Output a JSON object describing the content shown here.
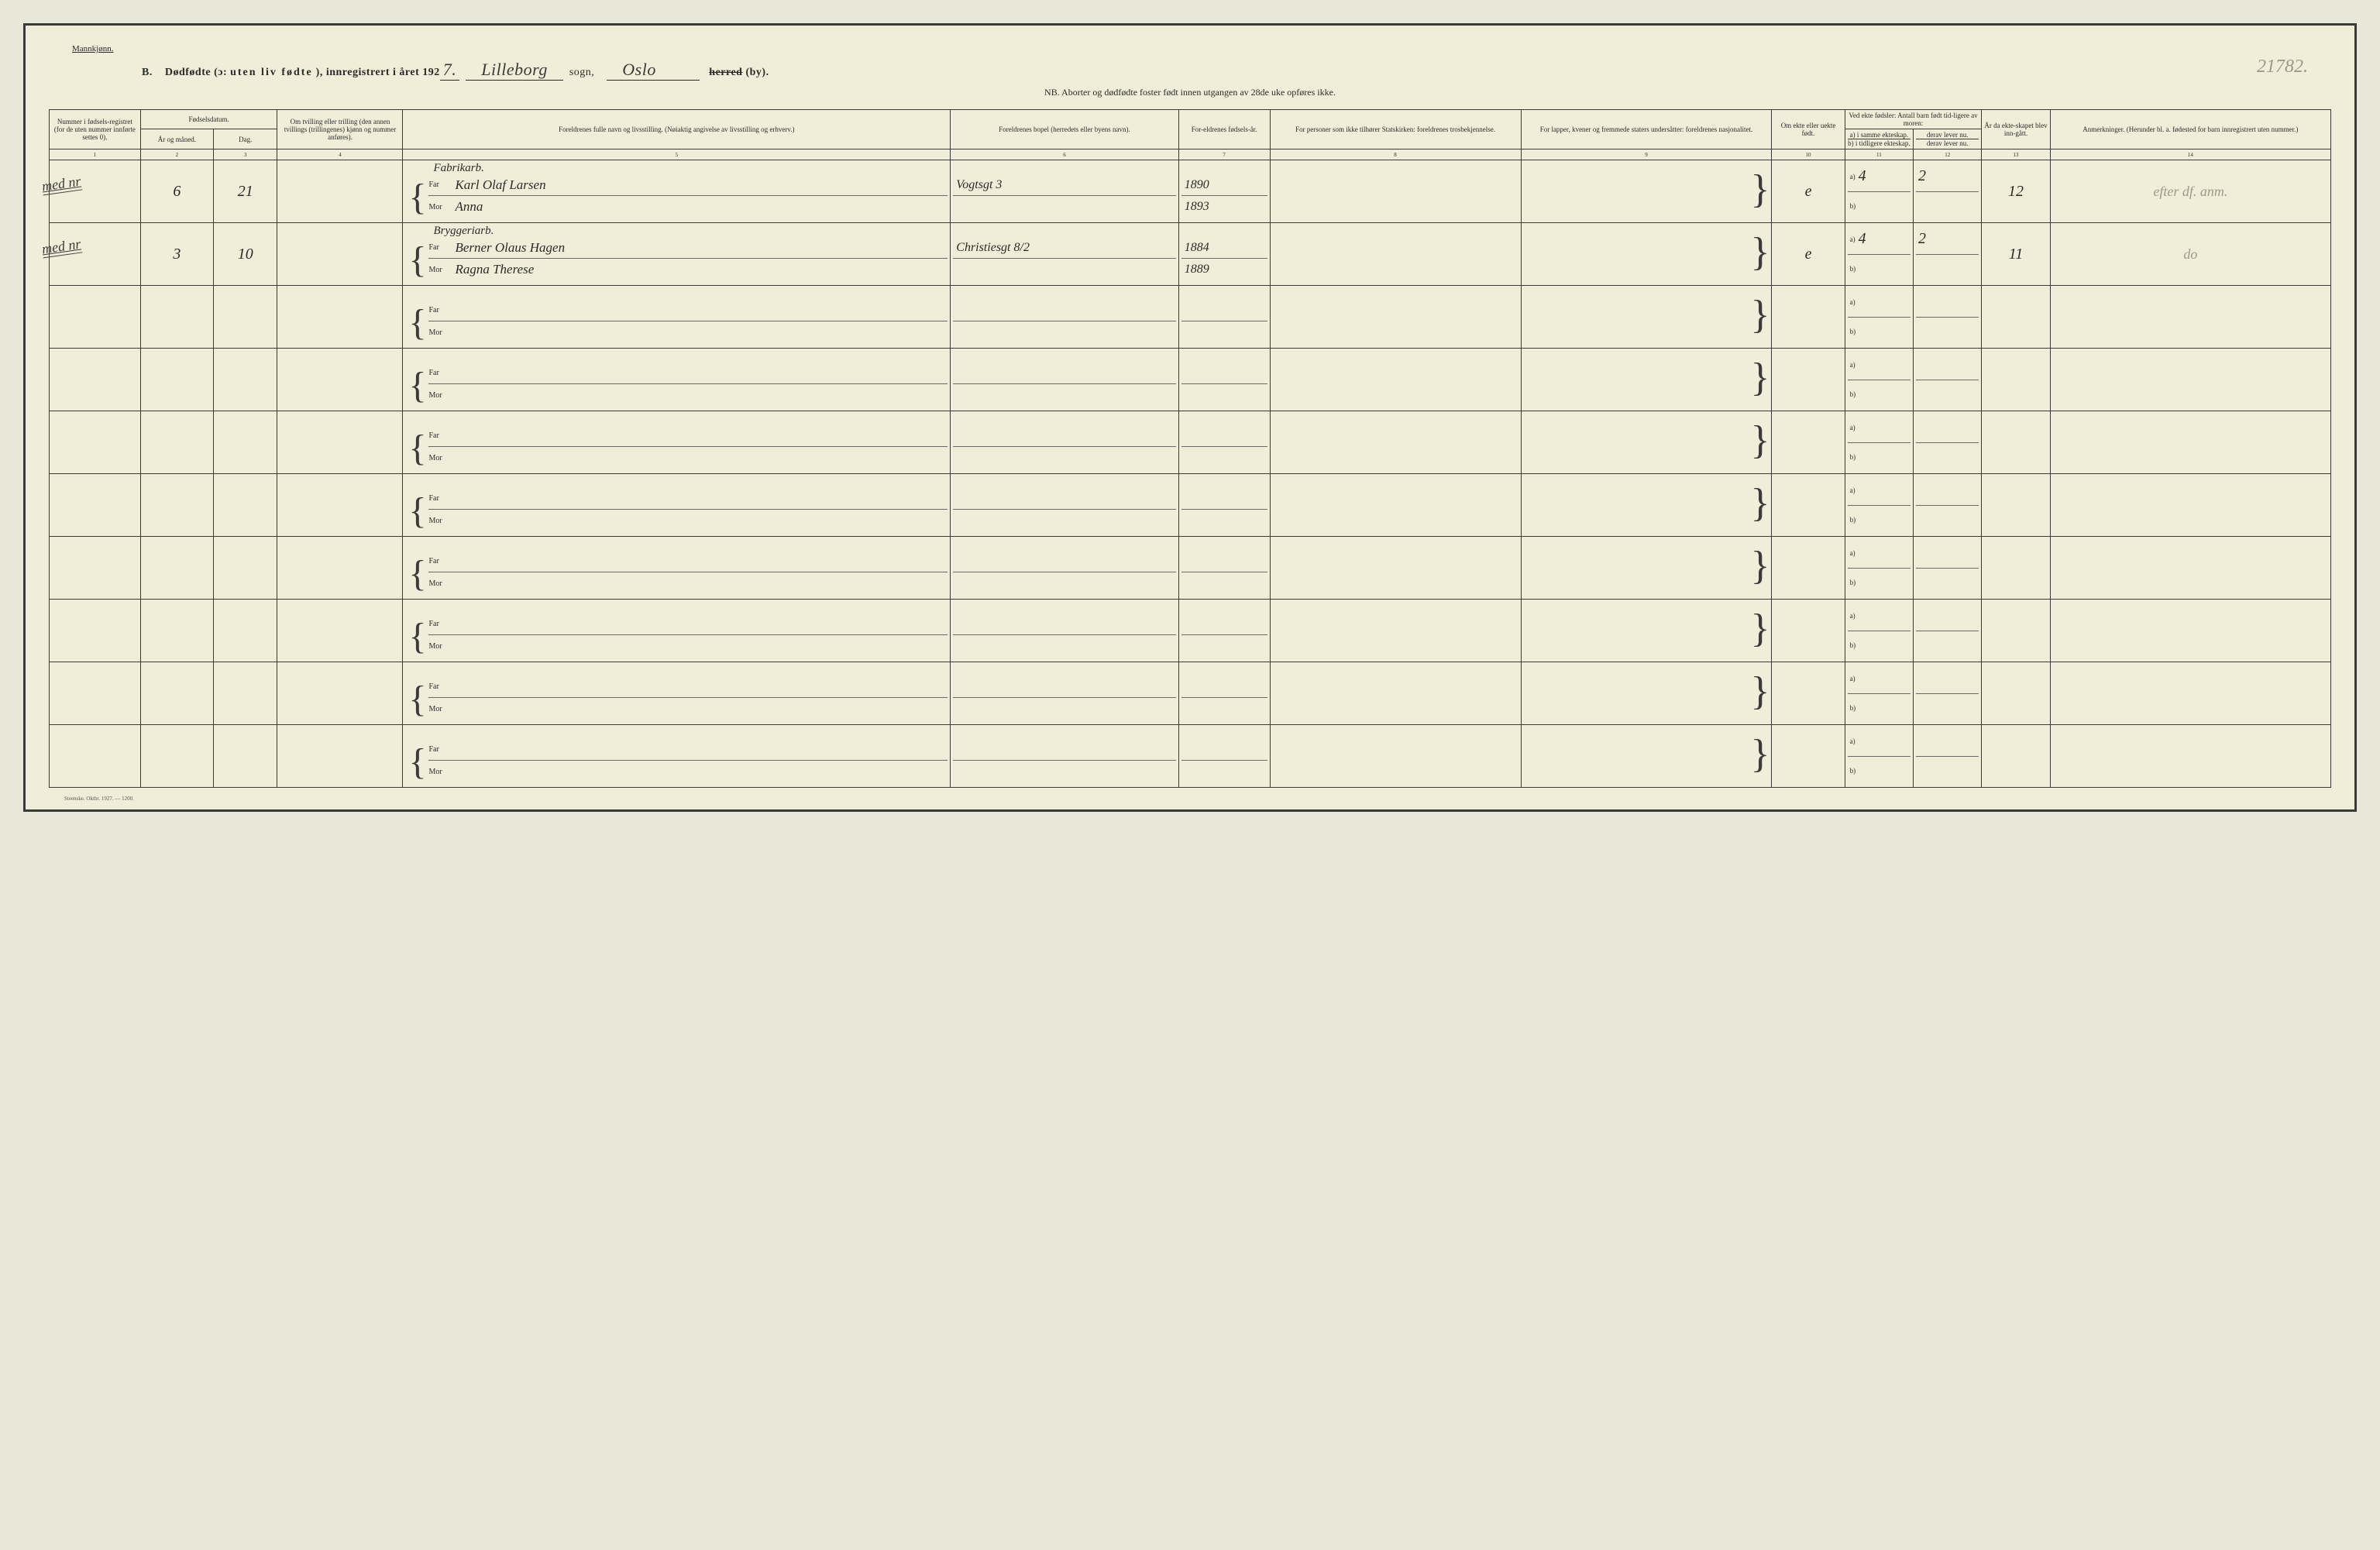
{
  "header": {
    "gender": "Mannkjønn.",
    "section_letter": "B.",
    "title_main": "Dødfødte (ɔ:",
    "title_spaced": "uten liv fødte",
    "title_tail": "), innregistrert i året 192",
    "year_suffix": "7.",
    "parish_hw": "Lilleborg",
    "sogn_label": "sogn,",
    "city_hw": "Oslo",
    "herred_label": "herred",
    "by_label": "(by).",
    "nb_line": "NB.  Aborter og dødfødte foster født innen utgangen av 28de uke opføres ikke.",
    "page_number_pencil": "21782."
  },
  "column_headers": {
    "c1": "Nummer i fødsels-registret (for de uten nummer innførte settes 0).",
    "c2_group": "Fødselsdatum.",
    "c2": "År og måned.",
    "c3": "Dag.",
    "c4": "Om tvilling eller trilling (den annen tvillings (trillingenes) kjønn og nummer anføres).",
    "c5": "Foreldrenes fulle navn og livsstilling. (Nøiaktig angivelse av livsstilling og erhverv.)",
    "c6": "Foreldrenes bopel (herredets eller byens navn).",
    "c7": "For-eldrenes fødsels-år.",
    "c8": "For personer som ikke tilhører Statskirken: foreldrenes trosbekjennelse.",
    "c9": "For lapper, kvener og fremmede staters undersåtter: foreldrenes nasjonalitet.",
    "c10": "Om ekte eller uekte født.",
    "c11_group": "Ved ekte fødsler: Antall barn født tid-ligere av moren:",
    "c11a": "a) i samme ekteskap.",
    "c11b": "b) i tidligere ekteskap.",
    "c12": "derav lever nu.",
    "c13": "År da ekte-skapet blev inn-gått.",
    "c14": "Anmerkninger. (Herunder bl. a. fødested for barn innregistrert uten nummer.)"
  },
  "col_numbers": [
    "1",
    "2",
    "3",
    "4",
    "5",
    "6",
    "7",
    "8",
    "9",
    "10",
    "11",
    "12",
    "13",
    "14"
  ],
  "parent_labels": {
    "far": "Far",
    "mor": "Mor"
  },
  "ab_labels": {
    "a": "a)",
    "b": "b)"
  },
  "rows": [
    {
      "margin_note": "med nr",
      "month": "6",
      "day": "21",
      "occupation": "Fabrikarb.",
      "far_name": "Karl Olaf Larsen",
      "mor_name": "Anna",
      "residence": "Vogtsgt 3",
      "far_year": "1890",
      "mor_year": "1893",
      "legitimacy": "e",
      "prev_a": "4",
      "living": "2",
      "marriage_year": "12",
      "remarks": "efter df. anm."
    },
    {
      "margin_note": "med nr",
      "month": "3",
      "day": "10",
      "occupation": "Bryggeriarb.",
      "far_name": "Berner Olaus Hagen",
      "mor_name": "Ragna Therese",
      "residence": "Christiesgt 8/2",
      "far_year": "1884",
      "mor_year": "1889",
      "legitimacy": "e",
      "prev_a": "4",
      "living": "2",
      "marriage_year": "11",
      "remarks": "do"
    }
  ],
  "empty_row_count": 8,
  "footer": "Steenske.  Oktbr. 1927. — 1200.",
  "colors": {
    "paper": "#f0eed8",
    "ink": "#2a2a2a",
    "pencil": "#9a9a8a",
    "border": "#3a3a3a"
  },
  "layout": {
    "col_widths_pct": [
      4,
      3.2,
      2.8,
      5.5,
      24,
      10,
      4,
      11,
      11,
      3.2,
      3,
      3,
      3,
      12.3
    ]
  }
}
